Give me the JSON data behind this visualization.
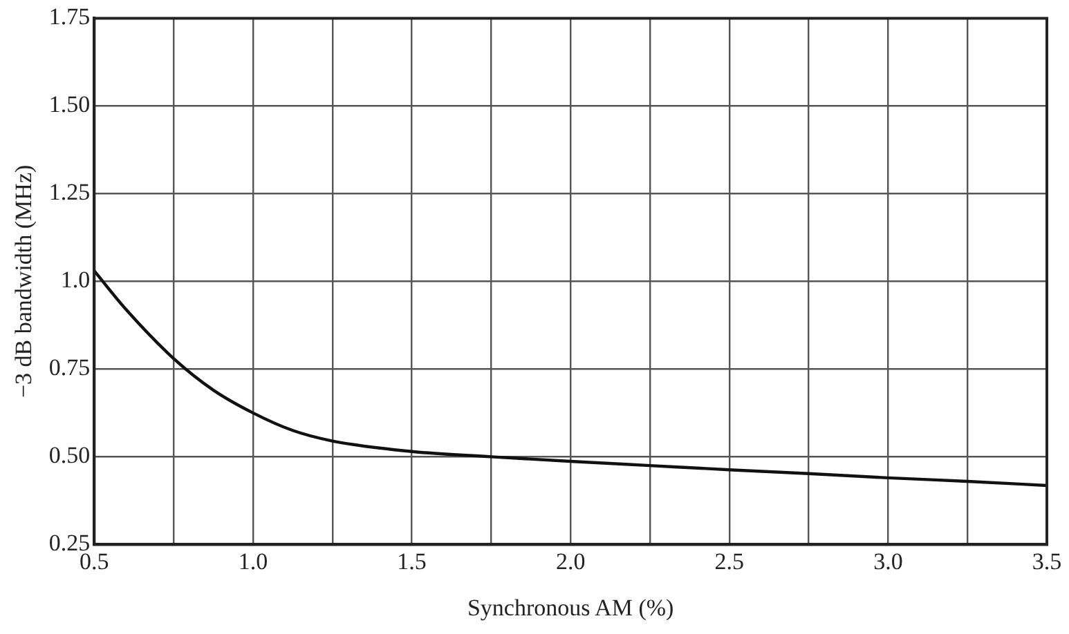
{
  "chart_data": {
    "type": "line",
    "xlabel": "Synchronous AM (%)",
    "ylabel": "−3 dB bandwidth (MHz)",
    "x": [
      0.5,
      0.6,
      0.75,
      0.875,
      1.0,
      1.125,
      1.25,
      1.5,
      1.75,
      2.0,
      2.25,
      2.5,
      2.75,
      3.0,
      3.25,
      3.5
    ],
    "series": [
      {
        "color": "#111111",
        "values": [
          1.03,
          0.92,
          0.78,
          0.69,
          0.625,
          0.575,
          0.545,
          0.515,
          0.5,
          0.487,
          0.475,
          0.463,
          0.452,
          0.44,
          0.43,
          0.418
        ]
      }
    ],
    "xlim": [
      0.5,
      3.5
    ],
    "xticks": [
      {
        "value": 0.5,
        "label": "0.5"
      },
      {
        "value": 0.75,
        "label": null
      },
      {
        "value": 1,
        "label": "1.0"
      },
      {
        "value": 1.25,
        "label": null
      },
      {
        "value": 1.5,
        "label": "1.5"
      },
      {
        "value": 1.75,
        "label": null
      },
      {
        "value": 2,
        "label": "2.0"
      },
      {
        "value": 2.25,
        "label": null
      },
      {
        "value": 2.5,
        "label": "2.5"
      },
      {
        "value": 2.75,
        "label": null
      },
      {
        "value": 3,
        "label": "3.0"
      },
      {
        "value": 3.25,
        "label": null
      },
      {
        "value": 3.5,
        "label": "3.5"
      }
    ],
    "ylim": [
      0.25,
      1.75
    ],
    "yticks": [
      0.25,
      {
        "value": 0.5,
        "label": "0.50"
      },
      0.75,
      {
        "value": 1,
        "label": "1.0"
      },
      1.25,
      {
        "value": 1.5,
        "label": "1.50"
      },
      1.75
    ],
    "grid": true,
    "legend": false,
    "marker": "none",
    "line_style": "solid"
  }
}
